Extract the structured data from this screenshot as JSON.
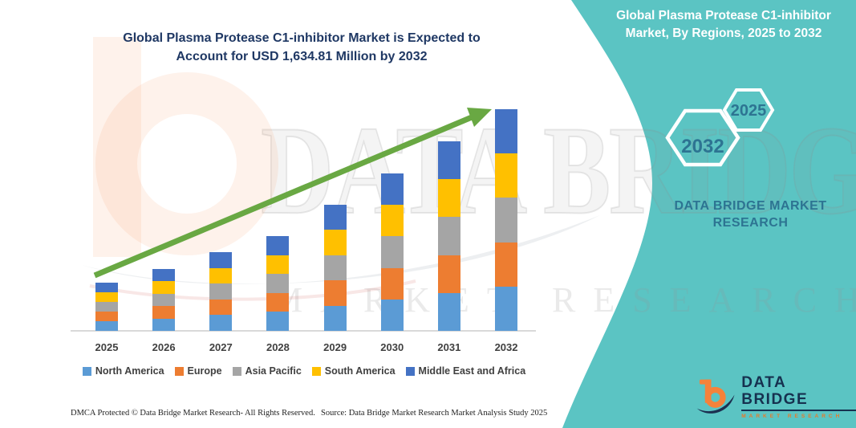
{
  "main_title": {
    "line1": "Global Plasma Protease C1-inhibitor Market is Expected to",
    "line2": "Account for USD 1,634.81 Million by 2032"
  },
  "side_panel": {
    "heading_line1": "Global Plasma Protease C1-inhibitor",
    "heading_line2": "Market, By Regions, 2025 to 2032",
    "hexagon_large_label": "2032",
    "hexagon_small_label": "2025",
    "brand_line1": "DATA BRIDGE MARKET",
    "brand_line2": "RESEARCH"
  },
  "watermark": {
    "line1": "DATA BRIDGE",
    "line2": "MARKET RESEARCH"
  },
  "chart_data": {
    "type": "bar",
    "stacked": true,
    "title": "Global Plasma Protease C1-inhibitor Market is Expected to Account for USD 1,634.81 Million by 2032",
    "categories": [
      "2025",
      "2026",
      "2027",
      "2028",
      "2029",
      "2030",
      "2031",
      "2032"
    ],
    "series": [
      {
        "name": "North America",
        "color": "#5B9BD5",
        "values": [
          12.0,
          15.4,
          19.6,
          23.6,
          31.4,
          39.2,
          47.2,
          55.2
        ]
      },
      {
        "name": "Europe",
        "color": "#ED7D31",
        "values": [
          12.0,
          15.4,
          19.6,
          23.6,
          31.4,
          39.2,
          47.2,
          55.2
        ]
      },
      {
        "name": "Asia Pacific",
        "color": "#A5A5A5",
        "values": [
          12.0,
          15.4,
          19.6,
          23.6,
          31.4,
          39.2,
          47.2,
          55.2
        ]
      },
      {
        "name": "South America",
        "color": "#FFC000",
        "values": [
          12.0,
          15.4,
          19.6,
          23.6,
          31.4,
          39.2,
          47.2,
          55.2
        ]
      },
      {
        "name": "Middle East and Africa",
        "color": "#4472C4",
        "values": [
          12.0,
          15.4,
          19.6,
          23.6,
          31.4,
          39.2,
          47.2,
          55.2
        ]
      }
    ],
    "value_unit": "relative bar height (no numeric axis shown on chart)",
    "annotated_total_2032": "USD 1,634.81 Million",
    "legend_position": "bottom",
    "y_axis_visible": false,
    "trend_arrow_color": "#69A843"
  },
  "footer": {
    "left": "DMCA Protected © Data Bridge Market Research-  All Rights Reserved.",
    "right": "Source: Data Bridge Market Research  Market Analysis Study 2025"
  },
  "logo": {
    "title": "DATA BRIDGE",
    "subtitle": "MARKET RESEARCH"
  },
  "colors": {
    "panel_teal": "#5BC4C3",
    "title_navy": "#1F3864",
    "panel_text_blue": "#2D7492",
    "logo_navy": "#16314F",
    "logo_orange": "#F5823A",
    "axis_gray": "#D9D9D9"
  }
}
